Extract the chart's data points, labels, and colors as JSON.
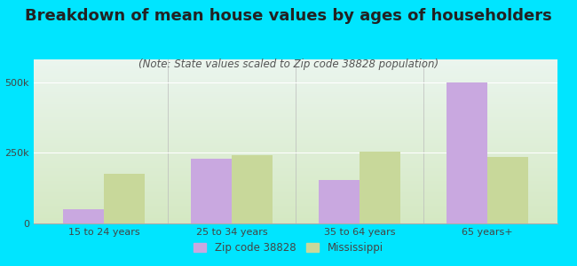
{
  "title": "Breakdown of mean house values by ages of householders",
  "subtitle": "(Note: State values scaled to Zip code 38828 population)",
  "categories": [
    "15 to 24 years",
    "25 to 34 years",
    "35 to 64 years",
    "65 years+"
  ],
  "zip_values": [
    50000,
    230000,
    155000,
    500000
  ],
  "ms_values": [
    175000,
    240000,
    255000,
    235000
  ],
  "zip_color": "#c9a8e0",
  "ms_color": "#c8d89a",
  "background_outer": "#00e5ff",
  "background_inner_top": "#eaf5ee",
  "background_inner_bottom": "#d4e8c2",
  "ylim": [
    0,
    580000
  ],
  "ytick_labels": [
    "0",
    "250k",
    "500k"
  ],
  "ytick_values": [
    0,
    250000,
    500000
  ],
  "legend_zip_label": "Zip code 38828",
  "legend_ms_label": "Mississippi",
  "title_fontsize": 13,
  "subtitle_fontsize": 8.5,
  "bar_width": 0.32,
  "title_color": "#222222",
  "subtitle_color": "#555555",
  "tick_color": "#444444",
  "grid_color": "#ffffff"
}
